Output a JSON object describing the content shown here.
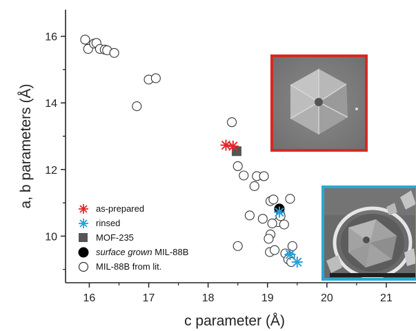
{
  "chart_data": {
    "type": "scatter",
    "xlabel": "c parameter (Å)",
    "ylabel": "a, b parameters (Å)",
    "xlim": [
      15.6,
      21.5
    ],
    "ylim": [
      8.6,
      16.8
    ],
    "x_ticks": [
      16,
      17,
      18,
      19,
      20,
      21
    ],
    "y_ticks": [
      10,
      12,
      14,
      16
    ],
    "x_tick_labels": [
      "16",
      "17",
      "18",
      "19",
      "20",
      "21"
    ],
    "y_tick_labels": [
      "10",
      "12",
      "14",
      "16"
    ],
    "legend_position": "bottom-left",
    "series": [
      {
        "name": "as-prepared",
        "marker": "asterisk",
        "color": "#e8262a",
        "points": [
          [
            18.3,
            12.73
          ],
          [
            18.42,
            12.7
          ]
        ]
      },
      {
        "name": "rinsed",
        "marker": "asterisk",
        "color": "#2a9fd8",
        "points": [
          [
            19.2,
            10.72
          ],
          [
            19.38,
            9.45
          ],
          [
            19.5,
            9.22
          ]
        ]
      },
      {
        "name": "MOF-235",
        "marker": "square",
        "color": "#555555",
        "points": [
          [
            18.48,
            12.55
          ]
        ]
      },
      {
        "name": "surface grown MIL-88B",
        "name_italic_part": "surface grown",
        "name_rest": " MIL-88B",
        "marker": "filled-circle",
        "color": "#000000",
        "points": [
          [
            19.2,
            10.82
          ]
        ]
      },
      {
        "name": "MIL-88B from lit.",
        "marker": "open-circle",
        "color": "#333333",
        "points": [
          [
            15.93,
            15.9
          ],
          [
            15.98,
            15.62
          ],
          [
            16.08,
            15.78
          ],
          [
            16.12,
            15.8
          ],
          [
            16.18,
            15.62
          ],
          [
            16.26,
            15.6
          ],
          [
            16.3,
            15.58
          ],
          [
            16.42,
            15.5
          ],
          [
            16.8,
            13.9
          ],
          [
            17.0,
            14.7
          ],
          [
            17.12,
            14.74
          ],
          [
            18.4,
            13.42
          ],
          [
            18.5,
            12.1
          ],
          [
            18.6,
            11.82
          ],
          [
            18.82,
            11.8
          ],
          [
            18.78,
            11.5
          ],
          [
            18.94,
            11.8
          ],
          [
            19.05,
            11.05
          ],
          [
            19.1,
            11.1
          ],
          [
            19.38,
            11.12
          ],
          [
            19.18,
            10.42
          ],
          [
            18.7,
            10.62
          ],
          [
            18.92,
            10.52
          ],
          [
            19.08,
            10.38
          ],
          [
            19.22,
            10.6
          ],
          [
            19.28,
            10.35
          ],
          [
            19.05,
            10.05
          ],
          [
            19.02,
            9.92
          ],
          [
            19.04,
            9.52
          ],
          [
            19.12,
            9.58
          ],
          [
            19.3,
            9.48
          ],
          [
            19.38,
            9.38
          ],
          [
            19.42,
            9.7
          ],
          [
            19.35,
            9.3
          ],
          [
            19.4,
            9.22
          ],
          [
            18.5,
            9.7
          ]
        ]
      }
    ],
    "insets": [
      {
        "description": "hexagonal crystal micrograph",
        "border_color": "#d42a22"
      },
      {
        "description": "crystal on surface micrograph",
        "border_color": "#2aa8d4"
      }
    ]
  }
}
